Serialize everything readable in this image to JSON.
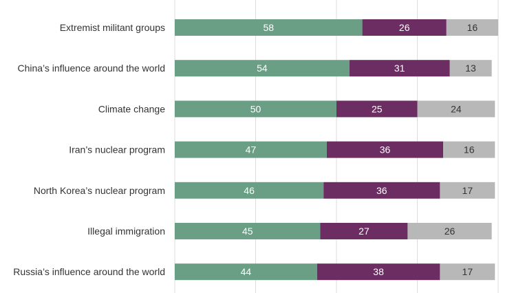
{
  "chart_data": {
    "type": "bar",
    "orientation": "horizontal",
    "stacked": true,
    "categories": [
      "Extremist militant groups",
      "China’s influence around the world",
      "Climate change",
      "Iran’s nuclear program",
      "North Korea’s nuclear program",
      "Illegal immigration",
      "Russia’s influence around the world"
    ],
    "series": [
      {
        "values": [
          58,
          54,
          50,
          47,
          46,
          45,
          44
        ],
        "color": "#6a9f86",
        "label_color": "#ffffff"
      },
      {
        "values": [
          26,
          31,
          25,
          36,
          36,
          27,
          38
        ],
        "color": "#6b2d62",
        "label_color": "#ffffff"
      },
      {
        "values": [
          16,
          13,
          24,
          16,
          17,
          26,
          17
        ],
        "color": "#b8b8b8",
        "label_color": "#333333"
      }
    ],
    "xlim": [
      0,
      100
    ],
    "grid": true,
    "gridline_color": "#dcdcdc"
  }
}
